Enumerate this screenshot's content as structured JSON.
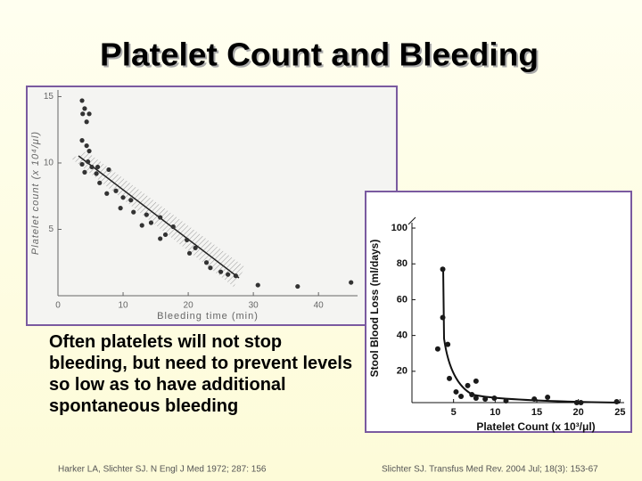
{
  "title": "Platelet Count and Bleeding",
  "body": "Often platelets will not stop bleeding, but need to prevent levels so low as to have additional spontaneous bleeding",
  "citations": [
    "Harker LA, Slichter SJ. N Engl J Med 1972; 287: 156",
    "Slichter SJ. Transfus Med Rev. 2004 Jul; 18(3): 153-67"
  ],
  "chart_data": [
    {
      "type": "scatter",
      "x_label": "Bleeding time (min)",
      "y_label": "Platelet count (x 10⁴/μl)",
      "color": "#333333",
      "xlim": [
        0,
        46
      ],
      "ylim": [
        0,
        15.5
      ],
      "xticks": [
        0,
        10,
        20,
        30,
        40
      ],
      "yticks": [
        5,
        10,
        15
      ],
      "x": [
        3.7,
        4.1,
        3.8,
        4.8,
        4.4,
        3.7,
        4.4,
        4.8,
        3.7,
        4.6,
        5.2,
        4.1,
        6.1,
        5.9,
        7.8,
        6.4,
        7.5,
        8.9,
        10.0,
        9.6,
        11.2,
        11.6,
        13.6,
        12.9,
        14.3,
        15.7,
        16.5,
        15.7,
        17.7,
        19.8,
        20.2,
        21.1,
        22.8,
        23.4,
        25.0,
        26.1,
        27.3,
        30.7,
        36.8,
        45.0
      ],
      "values": [
        14.7,
        14.1,
        13.7,
        13.7,
        13.1,
        11.7,
        11.3,
        10.9,
        9.9,
        10.1,
        9.7,
        9.3,
        9.7,
        9.2,
        9.5,
        8.5,
        7.7,
        7.9,
        7.4,
        6.6,
        7.2,
        6.3,
        6.1,
        5.3,
        5.5,
        5.9,
        4.6,
        4.3,
        5.2,
        4.2,
        3.2,
        3.6,
        2.5,
        2.1,
        1.8,
        1.6,
        1.5,
        0.8,
        0.7,
        1.0
      ]
    },
    {
      "type": "scatter",
      "x_label": "Platelet Count (x 10³/μl)",
      "y_label": "Stool Blood Loss (ml/days)",
      "color": "#1a1a1a",
      "xlim": [
        0,
        25.5
      ],
      "ylim": [
        2.5,
        103
      ],
      "xticks": [
        5,
        10,
        15,
        20,
        25
      ],
      "yticks": [
        20,
        40,
        60,
        80,
        100
      ],
      "x": [
        3.7,
        3.7,
        3.1,
        4.3,
        4.5,
        5.3,
        5.9,
        6.7,
        7.2,
        7.7,
        7.7,
        8.8,
        9.9,
        11.3,
        14.7,
        16.3,
        19.8,
        20.3,
        24.6
      ],
      "values": [
        77,
        50,
        32.5,
        35,
        16,
        8.5,
        6,
        12,
        7,
        14.5,
        5,
        4.5,
        5,
        3.5,
        4.5,
        5.5,
        2.5,
        2.5,
        3
      ]
    }
  ]
}
